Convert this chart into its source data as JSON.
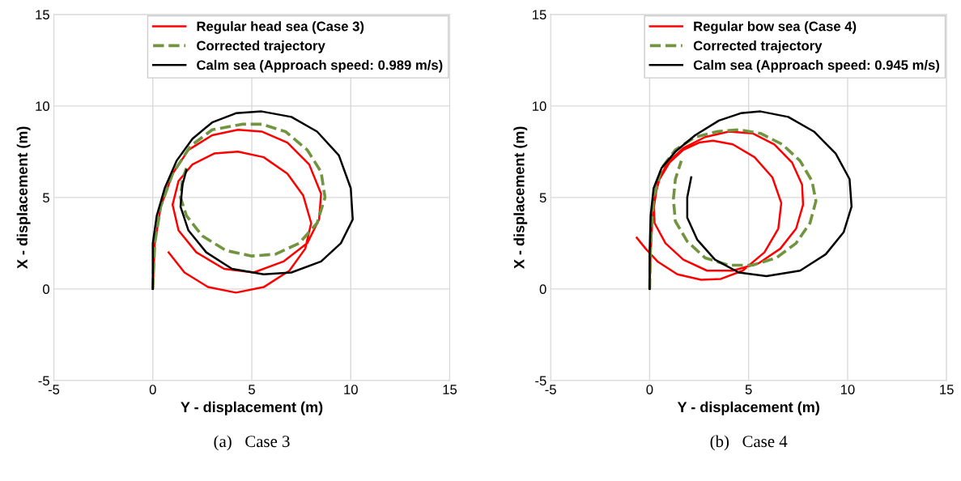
{
  "chart_data": [
    {
      "type": "line",
      "title": "(a)   Case 3",
      "xlabel": "Y - displacement (m)",
      "ylabel": "X - displacement (m)",
      "xlim": [
        -5,
        15
      ],
      "ylim": [
        -5,
        15
      ],
      "xticks": [
        -5,
        0,
        5,
        10,
        15
      ],
      "yticks": [
        -5,
        0,
        5,
        10,
        15
      ],
      "grid": true,
      "legend": "top right",
      "marker": "none",
      "series": [
        {
          "name": "Regular head sea (Case 3)",
          "color": "#ff0000",
          "line_style": "solid",
          "x": [
            0,
            0.1,
            0.4,
            1,
            1.8,
            3,
            4.3,
            5.5,
            6.8,
            7.9,
            8.5,
            8.4,
            7.8,
            6.6,
            5.1,
            3.6,
            2.2,
            1.3,
            1.0,
            1.3,
            2.0,
            3.1,
            4.3,
            5.6,
            6.8,
            7.6,
            8.0,
            7.7,
            6.9,
            5.6,
            4.2,
            2.8,
            1.6,
            0.8
          ],
          "values": [
            0,
            2.5,
            4.5,
            6.3,
            7.6,
            8.4,
            8.7,
            8.6,
            8.0,
            6.8,
            5.2,
            3.8,
            2.5,
            1.5,
            0.9,
            1.1,
            2.0,
            3.2,
            4.6,
            5.9,
            6.8,
            7.4,
            7.5,
            7.2,
            6.3,
            5.1,
            3.6,
            2.2,
            1.0,
            0.1,
            -0.2,
            0.1,
            0.9,
            2.0
          ]
        },
        {
          "name": "Corrected trajectory",
          "color": "#70943f",
          "line_style": "dashed",
          "x": [
            0,
            0.1,
            0.4,
            1,
            1.9,
            3,
            4.5,
            5.5,
            6.7,
            7.8,
            8.5,
            8.7,
            8.3,
            7.4,
            6.2,
            5,
            3.7,
            2.5,
            1.7,
            1.4,
            1.5,
            1.7
          ],
          "values": [
            0,
            2.5,
            4.5,
            6.3,
            7.8,
            8.7,
            9.0,
            9.0,
            8.6,
            7.6,
            6.4,
            5,
            3.6,
            2.5,
            1.9,
            1.8,
            2.1,
            2.9,
            4,
            5,
            6,
            6.6
          ]
        },
        {
          "name": "Calm sea (Approach speed: 0.989 m/s)",
          "color": "#000000",
          "line_style": "solid",
          "x": [
            0,
            0,
            0.2,
            0.6,
            1.2,
            2,
            3,
            4.2,
            5.5,
            7,
            8.3,
            9.4,
            10,
            10.1,
            9.5,
            8.5,
            7,
            5.6,
            4,
            2.7,
            1.8,
            1.4,
            1.5,
            1.7
          ],
          "values": [
            0,
            2.5,
            4,
            5.5,
            7,
            8.2,
            9.1,
            9.6,
            9.7,
            9.4,
            8.6,
            7.3,
            5.5,
            3.8,
            2.5,
            1.5,
            0.9,
            0.8,
            1.1,
            2,
            3.2,
            4.5,
            5.7,
            6.5
          ]
        }
      ]
    },
    {
      "type": "line",
      "title": "(b)   Case 4",
      "xlabel": "Y - displacement (m)",
      "ylabel": "X - displacement (m)",
      "xlim": [
        -5,
        15
      ],
      "ylim": [
        -5,
        15
      ],
      "xticks": [
        -5,
        0,
        5,
        10,
        15
      ],
      "yticks": [
        -5,
        0,
        5,
        10,
        15
      ],
      "grid": true,
      "legend": "top right",
      "marker": "none",
      "series": [
        {
          "name": "Regular bow sea (Case 4)",
          "color": "#ff0000",
          "line_style": "solid",
          "x": [
            0,
            0.05,
            0.15,
            0.4,
            0.9,
            1.7,
            2.8,
            4.0,
            5.2,
            6.3,
            7.2,
            7.7,
            7.75,
            7.4,
            6.6,
            5.5,
            4.2,
            2.9,
            1.7,
            0.8,
            0.25,
            0.2,
            0.5,
            1.0,
            1.7,
            2.5,
            3.2,
            4.2,
            5.3,
            6.2,
            6.65,
            6.5,
            5.8,
            4.7,
            3.6,
            2.6,
            1.4,
            0.4,
            -0.2,
            -0.65
          ],
          "values": [
            0,
            2,
            4,
            5.8,
            6.9,
            7.7,
            8.3,
            8.6,
            8.5,
            7.9,
            6.9,
            5.7,
            4.6,
            3.3,
            2.2,
            1.4,
            1.0,
            1.0,
            1.6,
            2.5,
            3.6,
            4.8,
            6.0,
            6.9,
            7.6,
            8.0,
            8.1,
            7.9,
            7.2,
            6.1,
            4.7,
            3.3,
            2.0,
            1.0,
            0.55,
            0.5,
            0.8,
            1.5,
            2.2,
            2.8
          ]
        },
        {
          "name": "Corrected trajectory",
          "color": "#70943f",
          "line_style": "dashed",
          "x": [
            0,
            0.05,
            0.2,
            0.6,
            1.3,
            2.3,
            3.4,
            4.5,
            5.6,
            6.7,
            7.6,
            8.2,
            8.4,
            8.1,
            7.4,
            6.4,
            5.2,
            4.0,
            2.8,
            1.9,
            1.3,
            1.2,
            1.3,
            1.6
          ],
          "values": [
            0,
            2.5,
            5,
            6.6,
            7.6,
            8.3,
            8.6,
            8.7,
            8.5,
            7.9,
            7,
            5.9,
            4.8,
            3.6,
            2.5,
            1.7,
            1.3,
            1.3,
            1.7,
            2.6,
            3.7,
            4.9,
            6,
            7.0
          ]
        },
        {
          "name": "Calm sea (Approach speed: 0.945 m/s)",
          "color": "#000000",
          "line_style": "solid",
          "x": [
            0,
            0,
            0.05,
            0.2,
            0.6,
            1.3,
            2.3,
            3.5,
            4.6,
            5.6,
            7,
            8.3,
            9.4,
            10.1,
            10.2,
            9.8,
            8.9,
            7.6,
            5.9,
            4.5,
            3.3,
            2.4,
            1.9,
            1.9,
            2.1
          ],
          "values": [
            0,
            2,
            4,
            5.5,
            6.6,
            7.5,
            8.4,
            9.2,
            9.6,
            9.7,
            9.4,
            8.6,
            7.4,
            6,
            4.5,
            3.1,
            1.9,
            1.0,
            0.7,
            0.9,
            1.6,
            2.7,
            3.9,
            5,
            6.1
          ]
        }
      ]
    }
  ]
}
